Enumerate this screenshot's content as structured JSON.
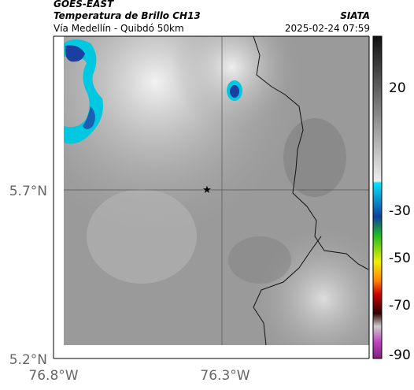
{
  "header": {
    "title": "GOES-EAST",
    "subtitle": "Temperatura de Brillo CH13",
    "route": "Vía Medellín - Quibdó 50km",
    "source": "SIATA",
    "timestamp": "2025-02-24 07:59"
  },
  "axes": {
    "y_ticks": [
      "5.7°N",
      "5.2°N"
    ],
    "x_ticks": [
      "76.8°W",
      "76.3°W"
    ]
  },
  "colorbar": {
    "ticks": [
      20,
      -30,
      -50,
      -70,
      -90
    ]
  }
}
